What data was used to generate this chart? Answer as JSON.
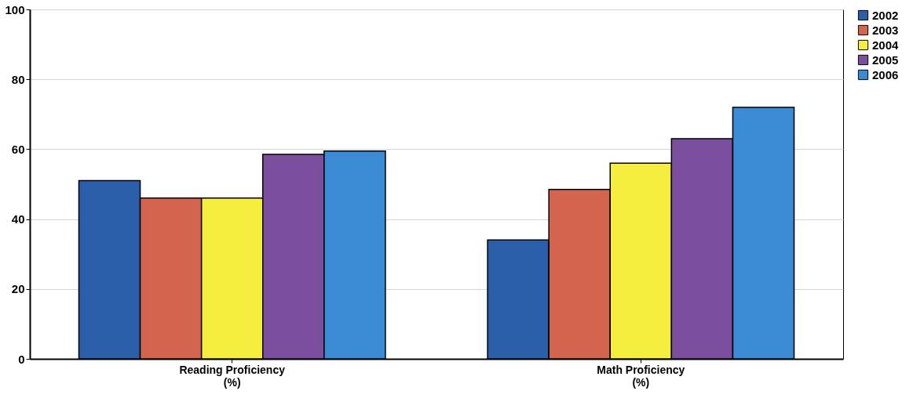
{
  "chart_data": {
    "type": "bar",
    "categories": [
      "Reading Proficiency\n(%)",
      "Math Proficiency\n(%)"
    ],
    "series": [
      {
        "name": "2002",
        "color": "#2a5ea8",
        "values": [
          51,
          34
        ]
      },
      {
        "name": "2003",
        "color": "#d3654f",
        "values": [
          46,
          48.5
        ]
      },
      {
        "name": "2004",
        "color": "#f5ee3e",
        "values": [
          46,
          56
        ]
      },
      {
        "name": "2005",
        "color": "#7b4f9e",
        "values": [
          58.5,
          63
        ]
      },
      {
        "name": "2006",
        "color": "#3a8ad4",
        "values": [
          59.5,
          72
        ]
      }
    ],
    "ylim": [
      0,
      100
    ],
    "yticks": [
      0,
      20,
      40,
      60,
      80,
      100
    ],
    "grid": "y",
    "legend": "right"
  }
}
